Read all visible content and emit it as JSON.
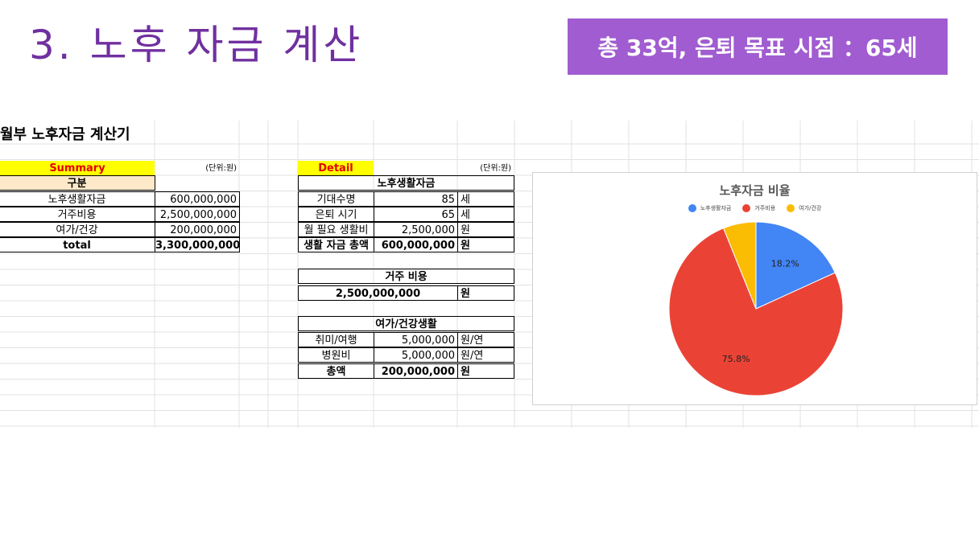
{
  "slide": {
    "title": "3. 노후 자금 계산",
    "badge": "총 33억, 은퇴 목표 시점 ：65세"
  },
  "sheet": {
    "title": "월부 노후자금 계산기",
    "summary": {
      "header": "Summary",
      "unit": "(단위:원)",
      "col_header": "구분",
      "rows": [
        {
          "label": "노후생활자금",
          "value": "600,000,000"
        },
        {
          "label": "거주비용",
          "value": "2,500,000,000"
        },
        {
          "label": "여가/건강",
          "value": "200,000,000"
        },
        {
          "label": "total",
          "value": "3,300,000,000"
        }
      ]
    },
    "detail": {
      "header": "Detail",
      "unit": "(단위:원)",
      "living": {
        "title": "노후생활자금",
        "rows": [
          {
            "label": "기대수명",
            "value": "85",
            "unit": "세"
          },
          {
            "label": "은퇴 시기",
            "value": "65",
            "unit": "세"
          },
          {
            "label": "월 필요 생활비",
            "value": "2,500,000",
            "unit": "원"
          },
          {
            "label": "생활 자금 총액",
            "value": "600,000,000",
            "unit": "원"
          }
        ]
      },
      "housing": {
        "title": "거주 비용",
        "value": "2,500,000,000",
        "unit": "원"
      },
      "leisure": {
        "title": "여가/건강생활",
        "rows": [
          {
            "label": "취미/여행",
            "value": "5,000,000",
            "unit": "원/연"
          },
          {
            "label": "병원비",
            "value": "5,000,000",
            "unit": "원/연"
          },
          {
            "label": "총액",
            "value": "200,000,000",
            "unit": "원"
          }
        ]
      }
    }
  },
  "chart_data": {
    "type": "pie",
    "title": "노후자금 비율",
    "categories": [
      "노후생활자금",
      "거주비용",
      "여가/건강"
    ],
    "values": [
      18.2,
      75.8,
      6.1
    ],
    "labels": [
      "18.2%",
      "75.8%",
      ""
    ],
    "colors": [
      "#4285f4",
      "#ea4335",
      "#fbbc04"
    ],
    "legend": "top"
  }
}
